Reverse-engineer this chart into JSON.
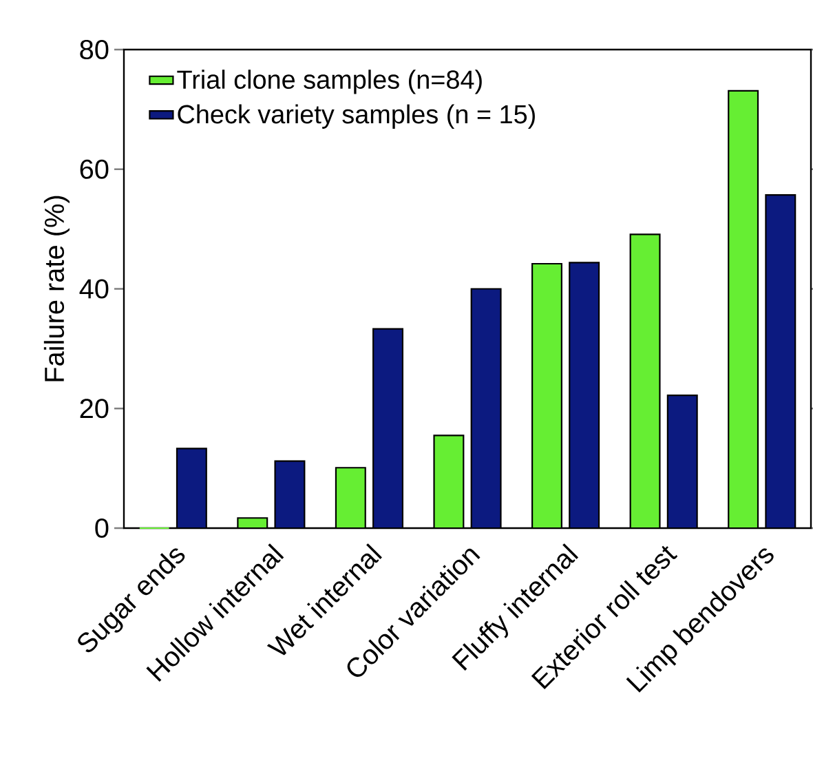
{
  "chart_data": {
    "type": "bar",
    "ylabel": "Failure rate (%)",
    "categories": [
      "Sugar ends",
      "Hollow internal",
      "Wet internal",
      "Color variation",
      "Fluffy internal",
      "Exterior roll test",
      "Limp bendovers"
    ],
    "series": [
      {
        "name": "Trial clone samples (n=84)",
        "color": "#66ee33",
        "values": [
          0,
          1.7,
          10.1,
          15.5,
          44.2,
          49.1,
          73.1
        ]
      },
      {
        "name": "Check variety samples (n = 15)",
        "color": "#0c1a80",
        "values": [
          13.3,
          11.2,
          33.3,
          40.0,
          44.4,
          22.2,
          55.7
        ]
      }
    ],
    "ylim": [
      0,
      80
    ],
    "yticks": [
      0,
      20,
      40,
      60,
      80
    ],
    "grid": false,
    "legend": "top left"
  }
}
